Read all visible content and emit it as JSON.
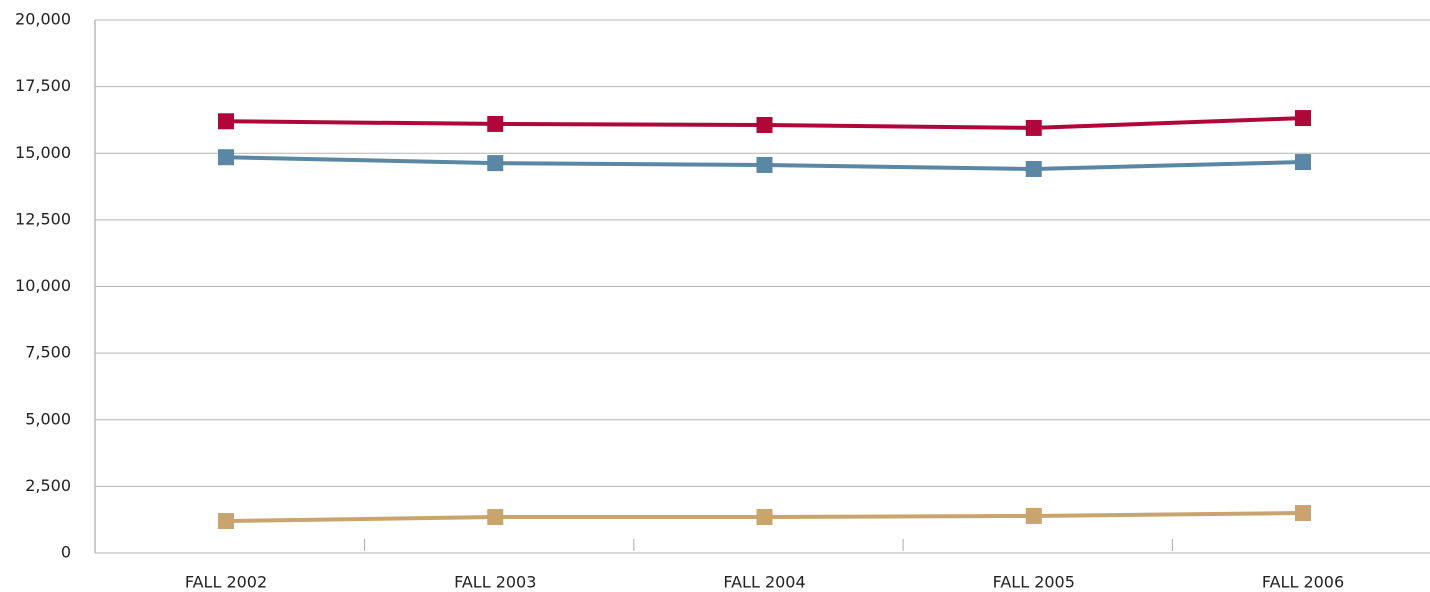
{
  "chart_data": {
    "type": "line",
    "categories": [
      "FALL 2002",
      "FALL 2003",
      "FALL 2004",
      "FALL 2005",
      "FALL 2006"
    ],
    "series": [
      {
        "color": "#b0073a",
        "values": [
          16200,
          16100,
          16060,
          15950,
          16320
        ]
      },
      {
        "color": "#5a87a3",
        "values": [
          14850,
          14630,
          14560,
          14410,
          14670
        ]
      },
      {
        "color": "#c9a46e",
        "values": [
          1200,
          1350,
          1350,
          1390,
          1500
        ]
      }
    ],
    "ylim": [
      0,
      20000
    ],
    "yticks": [
      0,
      {
        "value": 2500,
        "label": "2,500"
      },
      {
        "value": 5000,
        "label": "5,000"
      },
      {
        "value": 7500,
        "label": "7,500"
      },
      {
        "value": 10000,
        "label": "10,000"
      },
      {
        "value": 12500,
        "label": "12,500"
      },
      {
        "value": 15000,
        "label": "15,000"
      },
      {
        "value": 17500,
        "label": "17,500"
      },
      {
        "value": 20000,
        "label": "20,000"
      }
    ],
    "grid": true
  }
}
